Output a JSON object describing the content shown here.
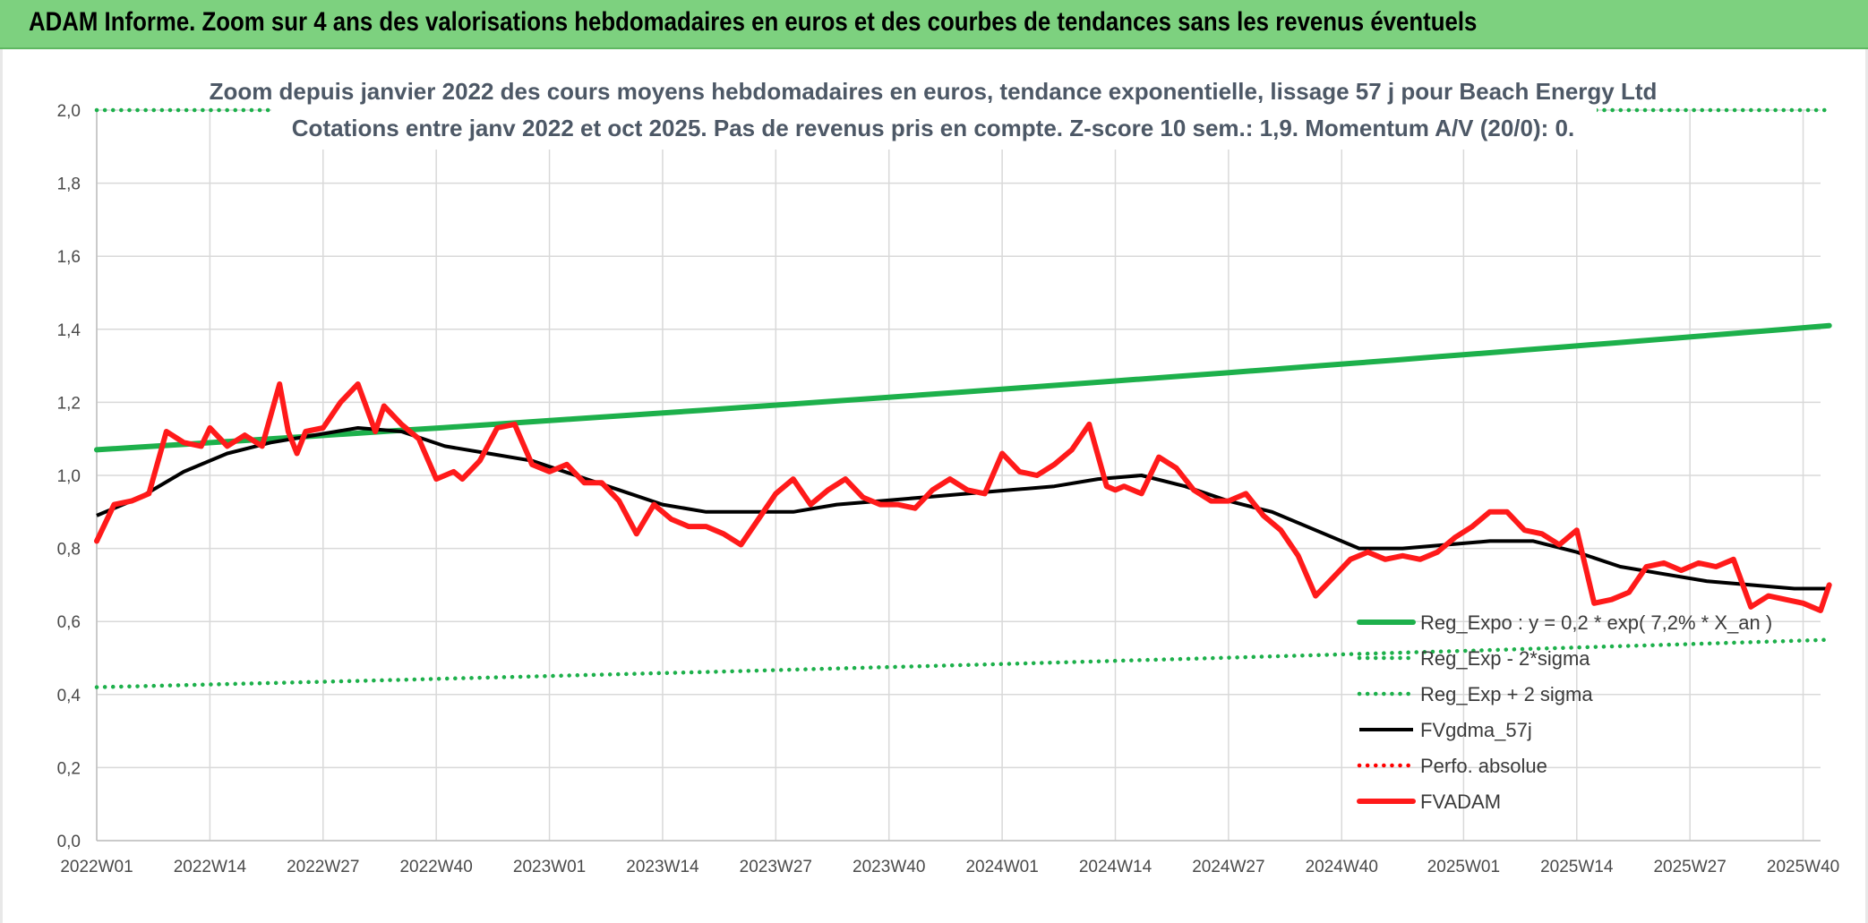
{
  "header": {
    "title": "ADAM Informe. Zoom sur 4 ans des valorisations hebdomadaires en euros et des courbes de tendances sans les revenus éventuels"
  },
  "colors": {
    "banner": "#7dd17f",
    "reg_expo": "#1db04b",
    "sigma": "#1db04b",
    "fvgdma": "#000000",
    "perfo": "#ff0000",
    "fvadam": "#ff1a1a",
    "grid": "#d9d9d9"
  },
  "chart_data": {
    "type": "line",
    "title_line1": "Zoom depuis janvier 2022 des cours moyens hebdomadaires en euros, tendance exponentielle, lissage 57 j pour Beach Energy Ltd",
    "title_line2": "Cotations entre janv 2022 et oct 2025. Pas de revenus pris en compte. Z-score 10 sem.: 1,9. Momentum A/V (20/0): 0.",
    "xlabel": "",
    "ylabel": "",
    "ylim": [
      0,
      2
    ],
    "yticks": [
      0,
      0.2,
      0.4,
      0.6,
      0.8,
      1.0,
      1.2,
      1.4,
      1.6,
      1.8,
      2.0
    ],
    "ytick_labels": [
      "0,0",
      "0,2",
      "0,4",
      "0,6",
      "0,8",
      "1,0",
      "1,2",
      "1,4",
      "1,6",
      "1,8",
      "2,0"
    ],
    "n_weeks": 199,
    "xtick_labels": [
      {
        "week": 0,
        "label": "2022W01"
      },
      {
        "week": 13,
        "label": "2022W14"
      },
      {
        "week": 26,
        "label": "2022W27"
      },
      {
        "week": 39,
        "label": "2022W40"
      },
      {
        "week": 52,
        "label": "2023W01"
      },
      {
        "week": 65,
        "label": "2023W14"
      },
      {
        "week": 78,
        "label": "2023W27"
      },
      {
        "week": 91,
        "label": "2023W40"
      },
      {
        "week": 104,
        "label": "2024W01"
      },
      {
        "week": 117,
        "label": "2024W14"
      },
      {
        "week": 130,
        "label": "2024W27"
      },
      {
        "week": 143,
        "label": "2024W40"
      },
      {
        "week": 157,
        "label": "2025W01"
      },
      {
        "week": 170,
        "label": "2025W14"
      },
      {
        "week": 183,
        "label": "2025W27"
      },
      {
        "week": 196,
        "label": "2025W40"
      }
    ],
    "series": [
      {
        "name": "Reg_Expo : y = 0,2 * exp( 7,2% *  X_an )",
        "style": "solid-thick",
        "color": "#1db04b",
        "x": [
          0,
          199
        ],
        "values": [
          1.07,
          1.41
        ]
      },
      {
        "name": "Reg_Exp - 2*sigma",
        "style": "dotted",
        "color": "#1db04b",
        "x": [
          0,
          199
        ],
        "values": [
          0.42,
          0.55
        ]
      },
      {
        "name": "Reg_Exp + 2 sigma",
        "style": "dotted",
        "color": "#1db04b",
        "x": [
          0,
          199
        ],
        "values": [
          2.0,
          2.0
        ]
      },
      {
        "name": "FVgdma_57j",
        "style": "solid",
        "color": "#000000",
        "x": [
          0,
          5,
          10,
          15,
          20,
          25,
          30,
          35,
          40,
          45,
          50,
          55,
          60,
          65,
          70,
          75,
          80,
          85,
          90,
          95,
          100,
          105,
          110,
          115,
          120,
          125,
          130,
          135,
          140,
          145,
          150,
          155,
          160,
          165,
          170,
          175,
          180,
          185,
          190,
          195,
          199
        ],
        "values": [
          0.89,
          0.94,
          1.01,
          1.06,
          1.09,
          1.11,
          1.13,
          1.12,
          1.08,
          1.06,
          1.04,
          1.0,
          0.96,
          0.92,
          0.9,
          0.9,
          0.9,
          0.92,
          0.93,
          0.94,
          0.95,
          0.96,
          0.97,
          0.99,
          1.0,
          0.97,
          0.93,
          0.9,
          0.85,
          0.8,
          0.8,
          0.81,
          0.82,
          0.82,
          0.79,
          0.75,
          0.73,
          0.71,
          0.7,
          0.69,
          0.69
        ]
      },
      {
        "name": "Perfo. absolue",
        "style": "dotted",
        "color": "#ff0000",
        "x": [],
        "values": []
      },
      {
        "name": "FVADAM",
        "style": "solid-thick",
        "color": "#ff1a1a",
        "x": [
          0,
          2,
          4,
          6,
          8,
          10,
          12,
          13,
          15,
          17,
          19,
          21,
          22,
          23,
          24,
          26,
          28,
          30,
          32,
          33,
          35,
          37,
          39,
          41,
          42,
          44,
          46,
          48,
          50,
          52,
          54,
          56,
          58,
          60,
          62,
          64,
          66,
          68,
          70,
          72,
          74,
          76,
          78,
          80,
          82,
          84,
          86,
          88,
          90,
          92,
          94,
          96,
          98,
          100,
          102,
          104,
          106,
          108,
          110,
          112,
          114,
          116,
          117,
          118,
          120,
          122,
          124,
          126,
          128,
          130,
          132,
          134,
          136,
          138,
          140,
          142,
          144,
          146,
          148,
          150,
          152,
          154,
          156,
          158,
          160,
          162,
          164,
          166,
          168,
          170,
          172,
          174,
          176,
          178,
          180,
          182,
          184,
          186,
          188,
          190,
          192,
          194,
          196,
          198,
          199
        ],
        "values": [
          0.82,
          0.92,
          0.93,
          0.95,
          1.12,
          1.09,
          1.08,
          1.13,
          1.08,
          1.11,
          1.08,
          1.25,
          1.12,
          1.06,
          1.12,
          1.13,
          1.2,
          1.25,
          1.12,
          1.19,
          1.14,
          1.1,
          0.99,
          1.01,
          0.99,
          1.04,
          1.13,
          1.14,
          1.03,
          1.01,
          1.03,
          0.98,
          0.98,
          0.93,
          0.84,
          0.92,
          0.88,
          0.86,
          0.86,
          0.84,
          0.81,
          0.88,
          0.95,
          0.99,
          0.92,
          0.96,
          0.99,
          0.94,
          0.92,
          0.92,
          0.91,
          0.96,
          0.99,
          0.96,
          0.95,
          1.06,
          1.01,
          1.0,
          1.03,
          1.07,
          1.14,
          0.97,
          0.96,
          0.97,
          0.95,
          1.05,
          1.02,
          0.96,
          0.93,
          0.93,
          0.95,
          0.89,
          0.85,
          0.78,
          0.67,
          0.72,
          0.77,
          0.79,
          0.77,
          0.78,
          0.77,
          0.79,
          0.83,
          0.86,
          0.9,
          0.9,
          0.85,
          0.84,
          0.81,
          0.85,
          0.65,
          0.66,
          0.68,
          0.75,
          0.76,
          0.74,
          0.76,
          0.75,
          0.77,
          0.64,
          0.67,
          0.66,
          0.65,
          0.63,
          0.7
        ]
      }
    ],
    "legend": {
      "position": "bottom-right",
      "entries": [
        {
          "label": "Reg_Expo : y = 0,2 * exp( 7,2% *  X_an )",
          "style": "solid-thick",
          "color": "#1db04b"
        },
        {
          "label": "Reg_Exp - 2*sigma",
          "style": "dotted",
          "color": "#1db04b"
        },
        {
          "label": "Reg_Exp + 2 sigma",
          "style": "dotted",
          "color": "#1db04b"
        },
        {
          "label": "FVgdma_57j",
          "style": "solid",
          "color": "#000000"
        },
        {
          "label": "Perfo. absolue",
          "style": "dotted",
          "color": "#ff0000"
        },
        {
          "label": "FVADAM",
          "style": "solid-thick",
          "color": "#ff1a1a"
        }
      ]
    }
  }
}
